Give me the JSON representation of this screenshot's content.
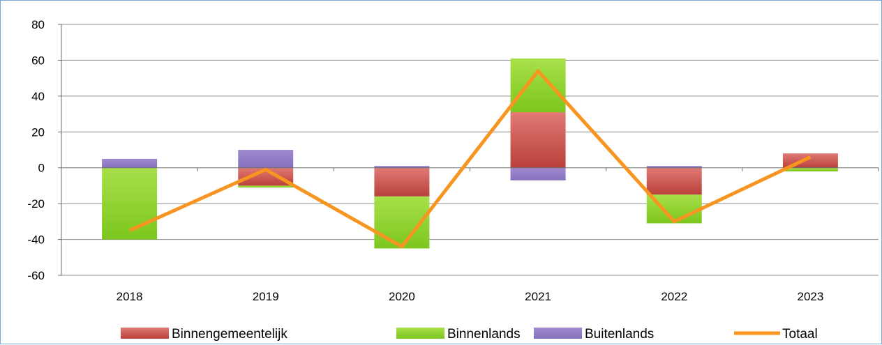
{
  "chart_data": {
    "type": "bar",
    "stacked": true,
    "categories": [
      "2018",
      "2019",
      "2020",
      "2021",
      "2022",
      "2023"
    ],
    "series": [
      {
        "name": "Binnengemeentelijk",
        "kind": "bar",
        "color": "#c0504d",
        "values": [
          0,
          -10,
          -16,
          31,
          -15,
          8
        ]
      },
      {
        "name": "Binnenlands",
        "kind": "bar",
        "color": "#92d050",
        "values": [
          -40,
          -1,
          -29,
          30,
          -16,
          -2
        ]
      },
      {
        "name": "Buitenlands",
        "kind": "bar",
        "color": "#8064a2",
        "values": [
          5,
          10,
          1,
          -7,
          1,
          0
        ]
      },
      {
        "name": "Totaal",
        "kind": "line",
        "color": "#f79520",
        "values": [
          -35,
          -1,
          -44,
          54,
          -30,
          6
        ]
      }
    ],
    "ylim": [
      -60,
      80
    ],
    "yticks": [
      "80",
      "60",
      "40",
      "20",
      "0",
      "-20",
      "-40",
      "-60"
    ],
    "grid": true,
    "legend_position": "bottom",
    "title": "",
    "xlabel": "",
    "ylabel": ""
  }
}
